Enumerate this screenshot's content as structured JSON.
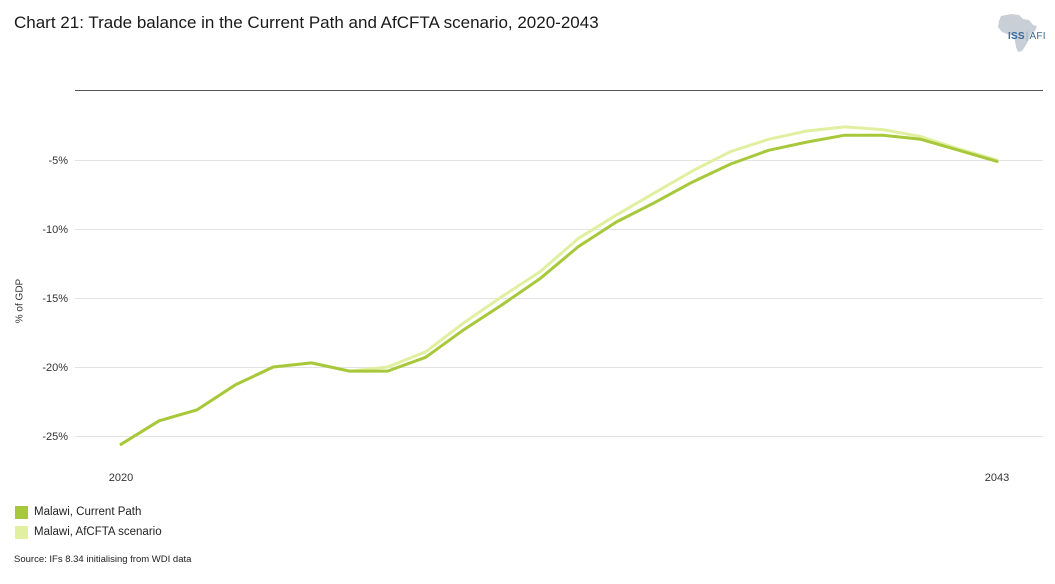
{
  "title": "Chart 21: Trade balance in the Current Path and AfCFTA scenario, 2020-2043",
  "logo": {
    "main": "ISS",
    "sub": "AFI"
  },
  "source": "Source: IFs 8.34 initialising from WDI data",
  "colors": {
    "current_path": "#a8c83c",
    "afcfta": "#e1f0a0",
    "grid": "#e3e3e3",
    "axis": "#555555"
  },
  "chart_data": {
    "type": "line",
    "title": "Chart 21: Trade balance in the Current Path and AfCFTA scenario, 2020-2043",
    "xlabel": "",
    "ylabel": "% of GDP",
    "x": [
      2020,
      2021,
      2022,
      2023,
      2024,
      2025,
      2026,
      2027,
      2028,
      2029,
      2030,
      2031,
      2032,
      2033,
      2034,
      2035,
      2036,
      2037,
      2038,
      2039,
      2040,
      2041,
      2042,
      2043
    ],
    "x_tick_labels": [
      "2020",
      "2043"
    ],
    "y_ticks": [
      -5,
      -10,
      -15,
      -20,
      -25
    ],
    "y_tick_labels": [
      "-5%",
      "-10%",
      "-15%",
      "-20%",
      "-25%"
    ],
    "ylim": [
      -27.5,
      0
    ],
    "grid": true,
    "legend_position": "bottom-left",
    "series": [
      {
        "name": "Malawi, AfCFTA scenario",
        "values": [
          -25.6,
          -23.9,
          -23.1,
          -21.3,
          -20.0,
          -19.7,
          -20.3,
          -20.0,
          -18.9,
          -16.8,
          -14.9,
          -13.1,
          -10.7,
          -9.0,
          -7.4,
          -5.8,
          -4.4,
          -3.5,
          -2.9,
          -2.6,
          -2.8,
          -3.3,
          -4.2,
          -5.0
        ]
      },
      {
        "name": "Malawi, Current Path",
        "values": [
          -25.6,
          -23.9,
          -23.1,
          -21.3,
          -20.0,
          -19.7,
          -20.3,
          -20.3,
          -19.3,
          -17.3,
          -15.5,
          -13.6,
          -11.3,
          -9.5,
          -8.1,
          -6.6,
          -5.3,
          -4.3,
          -3.7,
          -3.2,
          -3.2,
          -3.5,
          -4.3,
          -5.1
        ]
      }
    ]
  }
}
